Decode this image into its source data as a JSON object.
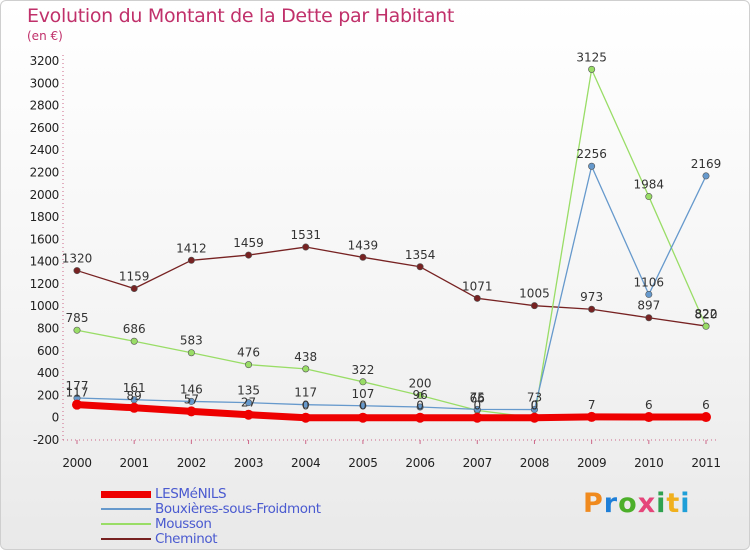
{
  "title": "Evolution du Montant de la Dette par Habitant",
  "subtitle": "(en €)",
  "brand": {
    "text": "Proxiti",
    "letter_colors": [
      "#f08a1e",
      "#1e7fd8",
      "#4caf2a",
      "#e5457a",
      "#2fa14f",
      "#f0b01e",
      "#1e9fd8"
    ]
  },
  "chart_data": {
    "type": "line",
    "x": [
      "2000",
      "2001",
      "2002",
      "2003",
      "2004",
      "2005",
      "2006",
      "2007",
      "2008",
      "2009",
      "2010",
      "2011"
    ],
    "ylim": [
      -200,
      3200
    ],
    "yticks": [
      -200,
      0,
      200,
      400,
      600,
      800,
      1000,
      1200,
      1400,
      1600,
      1800,
      2000,
      2200,
      2400,
      2600,
      2800,
      3000,
      3200
    ],
    "grid": false,
    "legend_position": "bottom-left",
    "series": [
      {
        "name": "LESMéNILS",
        "color": "#ee0000",
        "values": [
          117,
          89,
          57,
          27,
          0,
          0,
          0,
          0,
          0,
          7,
          6,
          6
        ],
        "labels": [
          "117",
          "89",
          "57",
          "27",
          "0",
          "0",
          "0",
          "0",
          "0",
          "7",
          "6",
          "6"
        ]
      },
      {
        "name": "Bouxières-sous-Froidmont",
        "color": "#6699cc",
        "values": [
          177,
          161,
          146,
          135,
          117,
          107,
          96,
          75,
          73,
          2256,
          1106,
          2169
        ],
        "labels": [
          "177",
          "161",
          "146",
          "135",
          "117",
          "107",
          "96",
          "75",
          "73",
          "2256",
          "1106",
          "2169"
        ]
      },
      {
        "name": "Mousson",
        "color": "#99dd66",
        "values": [
          785,
          686,
          583,
          476,
          438,
          322,
          200,
          66,
          0,
          3125,
          1984,
          820
        ],
        "labels": [
          "785",
          "686",
          "583",
          "476",
          "438",
          "322",
          "200",
          "66",
          "0",
          "3125",
          "1984",
          "820"
        ]
      },
      {
        "name": "Cheminot",
        "color": "#772222",
        "values": [
          1320,
          1159,
          1412,
          1459,
          1531,
          1439,
          1354,
          1071,
          1005,
          973,
          897,
          822
        ],
        "labels": [
          "1320",
          "1159",
          "1412",
          "1459",
          "1531",
          "1439",
          "1354",
          "1071",
          "1005",
          "973",
          "897",
          "822"
        ]
      }
    ]
  }
}
